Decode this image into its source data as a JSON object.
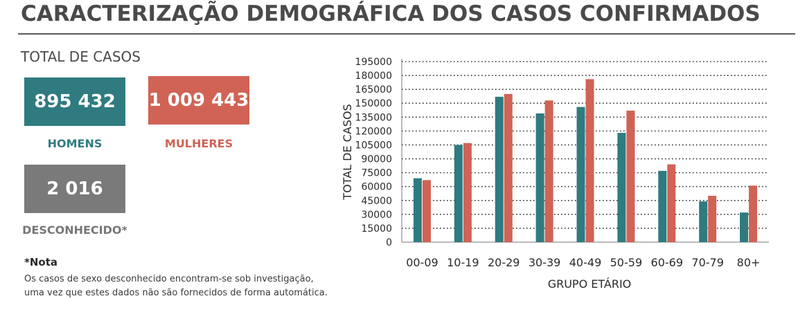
{
  "title": "CARACTERIZAÇÃO DEMOGRÁFICA DOS CASOS CONFIRMADOS",
  "totals": {
    "label": "TOTAL DE CASOS",
    "men": {
      "value": "895 432",
      "label": "HOMENS"
    },
    "women": {
      "value": "1 009 443",
      "label": "MULHERES"
    },
    "unknown": {
      "value": "2 016",
      "label": "DESCONHECIDO*"
    }
  },
  "note": {
    "title": "*Nota",
    "line1": "Os casos de sexo desconhecido encontram-se sob investigação,",
    "line2": "uma vez que estes dados não são fornecidos de forma automática."
  },
  "colors": {
    "men": "#2f7b80",
    "women": "#d06355",
    "unknown": "#7a7a7a"
  },
  "chart_data": {
    "type": "bar",
    "xlabel": "GRUPO ETÁRIO",
    "ylabel": "TOTAL DE CASOS",
    "ylim": [
      0,
      195000
    ],
    "yticks": [
      0,
      15000,
      30000,
      45000,
      60000,
      75000,
      90000,
      105000,
      120000,
      135000,
      150000,
      165000,
      180000,
      195000
    ],
    "grid": true,
    "categories": [
      "00-09",
      "10-19",
      "20-29",
      "30-39",
      "40-49",
      "50-59",
      "60-69",
      "70-79",
      "80+"
    ],
    "series": [
      {
        "key": "men",
        "color": "#2f7b80",
        "values": [
          69000,
          105000,
          157000,
          139000,
          146000,
          118000,
          77000,
          44000,
          32000
        ]
      },
      {
        "key": "women",
        "color": "#d06355",
        "values": [
          67000,
          107000,
          160000,
          153000,
          176000,
          142000,
          84000,
          50000,
          61000
        ]
      }
    ]
  }
}
